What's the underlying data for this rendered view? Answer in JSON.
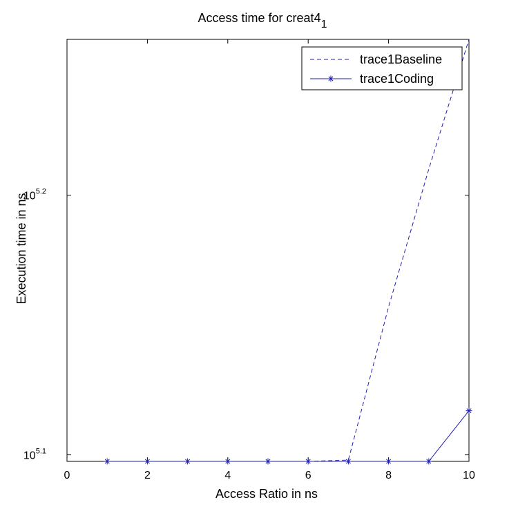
{
  "chart_data": {
    "type": "line",
    "title": "Access time for creat4",
    "title_subscript": "1",
    "xlabel": "Access Ratio in ns",
    "ylabel": "Execution time in ns",
    "y_scale": "log10",
    "xlim": [
      0,
      10
    ],
    "ylim_log10": [
      5.0975,
      5.26
    ],
    "x_ticks": [
      0,
      2,
      4,
      6,
      8,
      10
    ],
    "x_tick_labels": [
      "0",
      "2",
      "4",
      "6",
      "8",
      "10"
    ],
    "y_ticks_log10": [
      5.1,
      5.2
    ],
    "y_tick_labels": [
      {
        "base": "10",
        "exp": "5.1"
      },
      {
        "base": "10",
        "exp": "5.2"
      }
    ],
    "grid": false,
    "legend_position": "top-right",
    "colors": {
      "series": "#1f1fb0",
      "axis": "#000000",
      "background": "#ffffff"
    },
    "series": [
      {
        "name": "trace1Baseline",
        "style": "dashed",
        "marker": "none",
        "x": [
          1,
          2,
          3,
          4,
          5,
          6,
          7,
          8,
          9,
          10
        ],
        "y_log10": [
          5.0975,
          5.0975,
          5.0975,
          5.0975,
          5.0975,
          5.0975,
          5.098,
          5.157,
          5.21,
          5.26
        ]
      },
      {
        "name": "trace1Coding",
        "style": "solid",
        "marker": "star",
        "x": [
          1,
          2,
          3,
          4,
          5,
          6,
          7,
          8,
          9,
          10
        ],
        "y_log10": [
          5.0975,
          5.0975,
          5.0975,
          5.0975,
          5.0975,
          5.0975,
          5.0975,
          5.0975,
          5.0975,
          5.117
        ]
      }
    ]
  }
}
